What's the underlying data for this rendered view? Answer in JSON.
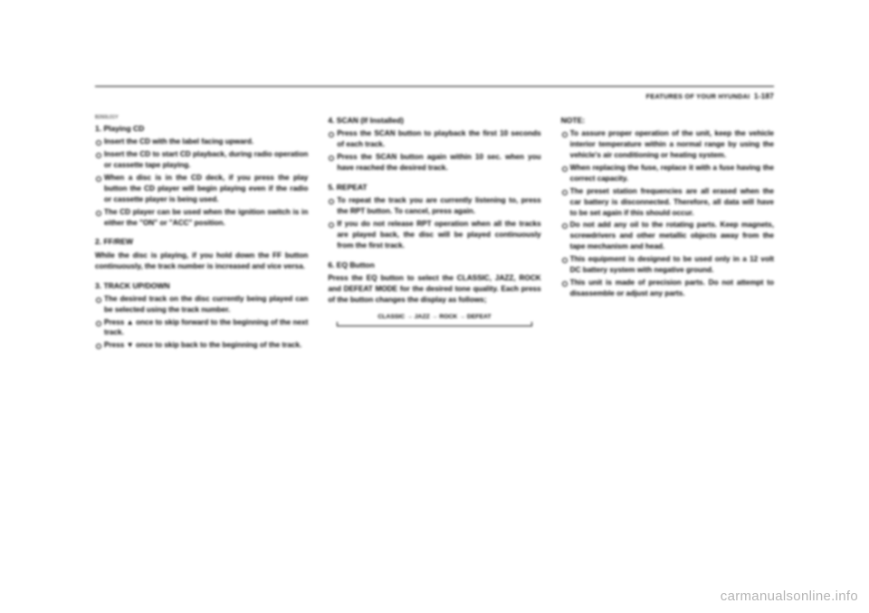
{
  "header": {
    "section": "FEATURES OF YOUR HYUNDAI",
    "page": "1-187"
  },
  "col1": {
    "code": "B260L01Y",
    "s1": {
      "title": "1. Playing CD",
      "items": [
        "Insert the CD with the label facing upward.",
        "Insert the CD to start CD playback, during radio operation or cassette tape playing.",
        "When a disc is in the CD deck, if you press the play button the CD player will begin playing even if the radio or cassette player is being used.",
        "The CD player can be used when the ignition switch is in either the \"ON\" or \"ACC\" position."
      ]
    },
    "s2": {
      "title": "2. FF/REW",
      "body": "While the disc is playing, if you hold down the FF button continuously, the track number is increased and vice versa."
    },
    "s3": {
      "title": "3. TRACK UP/DOWN",
      "items": [
        "The desired track on the disc currently being played can be selected using the track number.",
        "Press ▲ once to skip forward to the beginning of the next track.",
        "Press ▼ once to skip back to the beginning of the track."
      ]
    }
  },
  "col2": {
    "s4": {
      "title": "4. SCAN (If Installed)",
      "items": [
        "Press the SCAN button to playback the first 10 seconds of each track.",
        "Press the SCAN button again within 10 sec. when you have reached the desired track."
      ]
    },
    "s5": {
      "title": "5. REPEAT",
      "items": [
        "To repeat the track you are currently listening to, press the RPT button. To cancel, press again.",
        "If you do not release RPT operation when all the tracks are played back, the disc will be played continuously from the first track."
      ]
    },
    "s6": {
      "title": "6. EQ Button",
      "body": "Press the EQ button to select the CLASSIC, JAZZ, ROCK and DEFEAT MODE for the desired tone quality. Each press of the button changes the display as follows;",
      "cycle": "CLASSIC → JAZZ → ROCK → DEFEAT"
    }
  },
  "col3": {
    "note": "NOTE:",
    "items": [
      "To assure proper operation of the unit, keep the vehicle interior temperature within a normal range by using the vehicle's air conditioning or heating system.",
      "When replacing the fuse, replace it with a fuse having the correct capacity.",
      "The preset station frequencies are all erased when the car battery is disconnected. Therefore, all data will have to be set again if this should occur.",
      "Do not add any oil to the rotating parts. Keep magnets, screwdrivers and other metallic objects away from the tape mechanism and head.",
      "This equipment is designed to be used only in a 12 volt DC battery system with negative ground.",
      "This unit is made of precision parts. Do not attempt to disassemble or adjust any parts."
    ]
  },
  "watermark": "carmanualsonline.info"
}
